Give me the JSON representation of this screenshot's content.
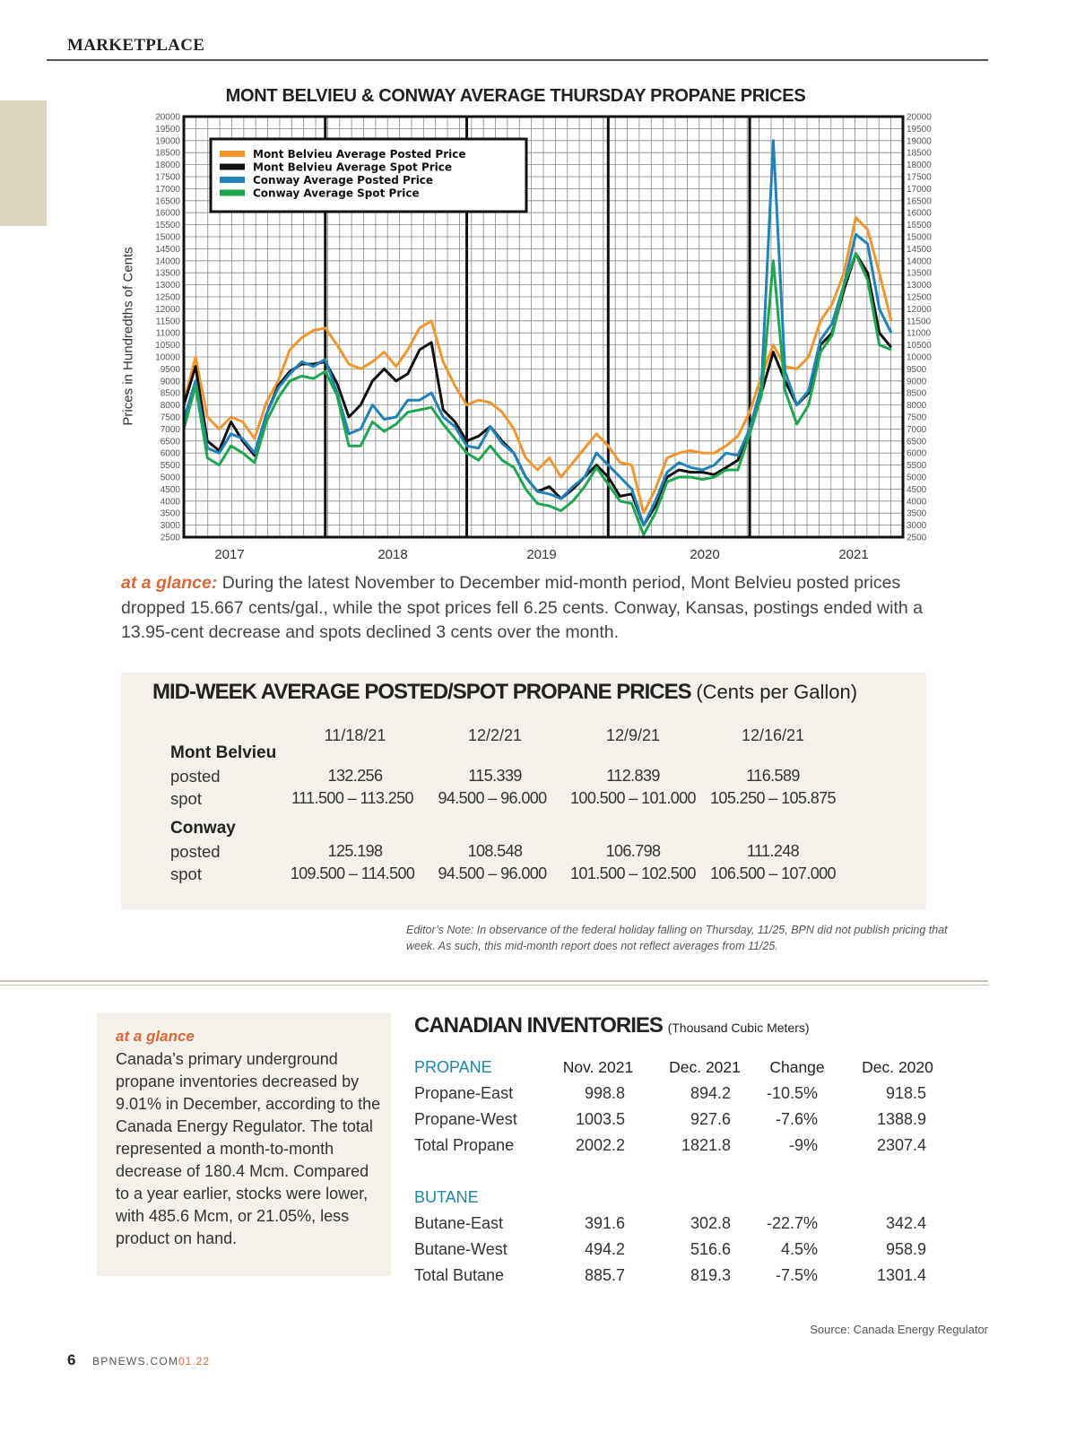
{
  "header": {
    "section": "MARKETPLACE"
  },
  "chart_data": {
    "type": "line",
    "title": "MONT BELVIEU & CONWAY AVERAGE THURSDAY PROPANE PRICES",
    "ylabel": "Prices in Hundredths of Cents",
    "xlabel": "",
    "ylim": [
      2500,
      20000
    ],
    "ytick_step": 500,
    "xlim": [
      "2016-12",
      "2022-01"
    ],
    "xtick_labels": [
      "2017",
      "2018",
      "2019",
      "2020",
      "2021"
    ],
    "grid": true,
    "legend": "top-left",
    "x": [
      "2016-12",
      "2017-01",
      "2017-02",
      "2017-03",
      "2017-04",
      "2017-05",
      "2017-06",
      "2017-07",
      "2017-08",
      "2017-09",
      "2017-10",
      "2017-11",
      "2017-12",
      "2018-01",
      "2018-02",
      "2018-03",
      "2018-04",
      "2018-05",
      "2018-06",
      "2018-07",
      "2018-08",
      "2018-09",
      "2018-10",
      "2018-11",
      "2018-12",
      "2019-01",
      "2019-02",
      "2019-03",
      "2019-04",
      "2019-05",
      "2019-06",
      "2019-07",
      "2019-08",
      "2019-09",
      "2019-10",
      "2019-11",
      "2019-12",
      "2020-01",
      "2020-02",
      "2020-03",
      "2020-04",
      "2020-05",
      "2020-06",
      "2020-07",
      "2020-08",
      "2020-09",
      "2020-10",
      "2020-11",
      "2020-12",
      "2021-01",
      "2021-02",
      "2021-03",
      "2021-04",
      "2021-05",
      "2021-06",
      "2021-07",
      "2021-08",
      "2021-09",
      "2021-10",
      "2021-11",
      "2021-12"
    ],
    "series": [
      {
        "name": "Mont Belvieu Average Posted Price",
        "color": "#f0962e",
        "values": [
          8100,
          10000,
          7500,
          7000,
          7500,
          7300,
          6600,
          8100,
          9000,
          10300,
          10800,
          11100,
          11200,
          10500,
          9700,
          9500,
          9800,
          10200,
          9600,
          10300,
          11200,
          11500,
          9800,
          8800,
          8000,
          8200,
          8100,
          7700,
          7000,
          5800,
          5300,
          5800,
          5000,
          5600,
          6200,
          6800,
          6300,
          5600,
          5500,
          3500,
          4500,
          5800,
          6000,
          6100,
          6000,
          6000,
          6300,
          6700,
          7700,
          9200,
          10500,
          9600,
          9500,
          10000,
          11500,
          12200,
          13500,
          15800,
          15300,
          13500,
          11500
        ]
      },
      {
        "name": "Mont Belvieu Average Spot Price",
        "color": "#111111",
        "values": [
          8000,
          9600,
          6500,
          6100,
          7300,
          6500,
          5900,
          7600,
          8800,
          9400,
          9700,
          9700,
          9800,
          8900,
          7500,
          8000,
          9000,
          9500,
          9000,
          9300,
          10300,
          10600,
          7800,
          7300,
          6500,
          6700,
          7100,
          6500,
          6000,
          5000,
          4400,
          4600,
          4100,
          4500,
          5000,
          5500,
          5000,
          4200,
          4300,
          3000,
          3800,
          5000,
          5300,
          5200,
          5200,
          5100,
          5400,
          5700,
          7000,
          8500,
          10200,
          9000,
          8000,
          8500,
          10500,
          11000,
          12800,
          14300,
          13500,
          11000,
          10400
        ]
      },
      {
        "name": "Conway Average Posted Price",
        "color": "#1f82b8",
        "values": [
          7400,
          9000,
          6200,
          6000,
          6800,
          6600,
          6000,
          7600,
          8700,
          9300,
          9800,
          9600,
          9900,
          8500,
          6800,
          7000,
          8000,
          7400,
          7500,
          8200,
          8200,
          8500,
          7500,
          7100,
          6300,
          6200,
          7100,
          6400,
          6000,
          5000,
          4400,
          4300,
          4100,
          4600,
          5000,
          6000,
          5500,
          5000,
          4500,
          3000,
          4000,
          5200,
          5600,
          5400,
          5300,
          5500,
          6000,
          5900,
          7000,
          8800,
          19000,
          9400,
          8000,
          8600,
          10700,
          11400,
          13000,
          15100,
          14700,
          12000,
          11000
        ]
      },
      {
        "name": "Conway Average Spot Price",
        "color": "#1ea651",
        "values": [
          7000,
          8800,
          5800,
          5500,
          6300,
          6000,
          5600,
          7300,
          8300,
          9000,
          9200,
          9100,
          9400,
          8400,
          6300,
          6300,
          7300,
          6900,
          7200,
          7700,
          7800,
          7900,
          7200,
          6600,
          6000,
          5700,
          6300,
          5700,
          5400,
          4500,
          3900,
          3800,
          3600,
          4000,
          4600,
          5400,
          4700,
          4000,
          3900,
          2600,
          3500,
          4800,
          5000,
          5000,
          4900,
          5000,
          5300,
          5300,
          6800,
          8400,
          14000,
          8600,
          7200,
          8000,
          10200,
          10900,
          13000,
          14300,
          13200,
          10500,
          10300
        ]
      }
    ]
  },
  "glance": {
    "lead": "at a glance:",
    "text": " During the latest November to December mid-month period, Mont Belvieu posted prices dropped 15.667 cents/gal., while the spot prices fell 6.25 cents. Conway, Kansas, postings ended with a 13.95-cent decrease and spots declined 3 cents over the month."
  },
  "midweek": {
    "title": "MID-WEEK AVERAGE POSTED/SPOT PROPANE PRICES",
    "unit": "(Cents per Gallon)",
    "dates": [
      "11/18/21",
      "12/2/21",
      "12/9/21",
      "12/16/21"
    ],
    "groups": [
      {
        "name": "Mont Belvieu",
        "posted_label": "posted",
        "posted": [
          "132.256",
          "115.339",
          "112.839",
          "116.589"
        ],
        "spot_label": "spot",
        "spot": [
          "111.500 – 113.250",
          "94.500 – 96.000",
          "100.500 – 101.000",
          "105.250 – 105.875"
        ]
      },
      {
        "name": "Conway",
        "posted_label": "posted",
        "posted": [
          "125.198",
          "108.548",
          "106.798",
          "111.248"
        ],
        "spot_label": "spot",
        "spot": [
          "109.500 – 114.500",
          "94.500 – 96.000",
          "101.500 – 102.500",
          "106.500 – 107.000"
        ]
      }
    ],
    "editor_note": "Editor’s Note: In observance of the federal holiday falling on Thursday, 11/25, BPN did not publish pricing that week. As such, this mid-month report does not reflect averages from 11/25."
  },
  "sidebar": {
    "heading": "at a glance",
    "text": "Canada’s primary underground propane inventories decreased by 9.01% in December, according to the Canada Energy Regulator. The total represented a month-to-month decrease of 180.4 Mcm. Compared to a year earlier, stocks were lower, with 485.6 Mcm, or 21.05%, less product on hand."
  },
  "inventories": {
    "title": "CANADIAN INVENTORIES",
    "unit": "(Thousand Cubic Meters)",
    "columns": [
      "Nov. 2021",
      "Dec. 2021",
      "Change",
      "Dec. 2020"
    ],
    "sections": [
      {
        "name": "PROPANE",
        "rows": [
          {
            "label": "Propane-East",
            "values": [
              "998.8",
              "894.2",
              "-10.5%",
              "918.5"
            ]
          },
          {
            "label": "Propane-West",
            "values": [
              "1003.5",
              "927.6",
              "-7.6%",
              "1388.9"
            ]
          },
          {
            "label": "Total Propane",
            "values": [
              "2002.2",
              "1821.8",
              "-9%",
              "2307.4"
            ]
          }
        ]
      },
      {
        "name": "BUTANE",
        "rows": [
          {
            "label": "Butane-East",
            "values": [
              "391.6",
              "302.8",
              "-22.7%",
              "342.4"
            ]
          },
          {
            "label": "Butane-West",
            "values": [
              "494.2",
              "516.6",
              "4.5%",
              "958.9"
            ]
          },
          {
            "label": "Total Butane",
            "values": [
              "885.7",
              "819.3",
              "-7.5%",
              "1301.4"
            ]
          }
        ]
      }
    ],
    "source": "Source: Canada Energy Regulator"
  },
  "footer": {
    "page": "6",
    "site": "BPNEWS.COM",
    "issue": "01.22"
  }
}
